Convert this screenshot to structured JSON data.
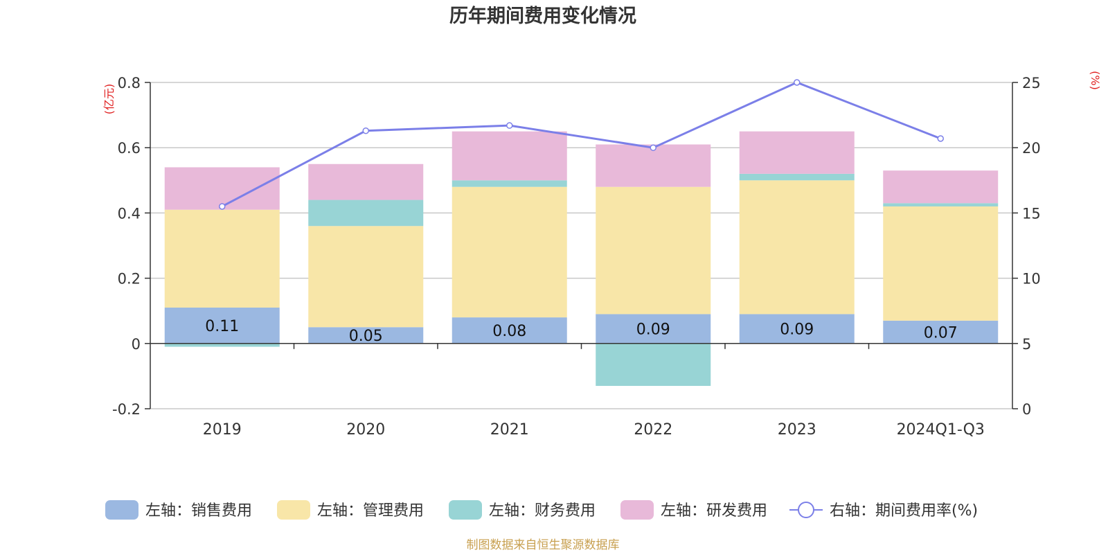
{
  "chart_data": {
    "type": "bar",
    "title": "历年期间费用变化情况",
    "categories": [
      "2019",
      "2020",
      "2021",
      "2022",
      "2023",
      "2024Q1-Q3"
    ],
    "left_axis": {
      "unit_label": "(亿元)",
      "range": [
        -0.2,
        0.8
      ],
      "ticks": [
        -0.2,
        0,
        0.2,
        0.4,
        0.6,
        0.8
      ],
      "tick_labels": [
        "-0.2",
        "0",
        "0.2",
        "0.4",
        "0.6",
        "0.8"
      ]
    },
    "right_axis": {
      "unit_label": "(%)",
      "range": [
        0,
        25
      ],
      "ticks": [
        0,
        5,
        10,
        15,
        20,
        25
      ],
      "tick_labels": [
        "0",
        "5",
        "10",
        "15",
        "20",
        "25"
      ]
    },
    "series": [
      {
        "name": "左轴：销售费用",
        "kind": "bar",
        "color": "#9bb8e1",
        "values": [
          0.11,
          0.05,
          0.08,
          0.09,
          0.09,
          0.07
        ],
        "labels": [
          "0.11",
          "0.05",
          "0.08",
          "0.09",
          "0.09",
          "0.07"
        ]
      },
      {
        "name": "左轴：管理费用",
        "kind": "bar",
        "color": "#f8e6a8",
        "values": [
          0.3,
          0.31,
          0.4,
          0.39,
          0.41,
          0.35
        ]
      },
      {
        "name": "左轴：财务费用",
        "kind": "bar",
        "color": "#98d4d5",
        "values": [
          -0.01,
          0.08,
          0.02,
          -0.13,
          0.02,
          0.01
        ]
      },
      {
        "name": "左轴：研发费用",
        "kind": "bar",
        "color": "#e8b9d9",
        "values": [
          0.13,
          0.11,
          0.15,
          0.13,
          0.13,
          0.1
        ]
      },
      {
        "name": "右轴：期间费用率(%)",
        "kind": "line",
        "axis": "right",
        "color": "#7b7fe8",
        "values": [
          15.5,
          21.3,
          21.7,
          20.0,
          25.0,
          20.7
        ]
      }
    ],
    "grid": true,
    "legend_position": "bottom-center"
  },
  "footer": {
    "source_text": "制图数据来自恒生聚源数据库",
    "source_color": "#c8a050"
  }
}
